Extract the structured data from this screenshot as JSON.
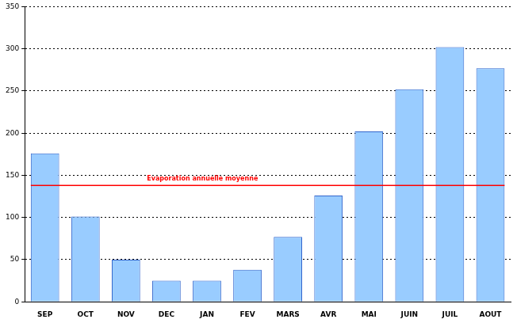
{
  "chart_data": {
    "type": "bar",
    "categories": [
      "SEP",
      "OCT",
      "NOV",
      "DEC",
      "JAN",
      "FEV",
      "MARS",
      "AVR",
      "MAI",
      "JUIN",
      "JUIL",
      "AOUT"
    ],
    "values": [
      176,
      101,
      50,
      25,
      25,
      38,
      77,
      126,
      202,
      252,
      302,
      277
    ],
    "color": "#99ccff",
    "ylim": [
      0,
      350
    ],
    "yticks": [
      0,
      50,
      100,
      150,
      200,
      250,
      300,
      350
    ],
    "grid": true,
    "annotations": [
      {
        "label": "Evaporation annuelle moyenne",
        "y": 138,
        "color": "#ff0000"
      }
    ]
  }
}
